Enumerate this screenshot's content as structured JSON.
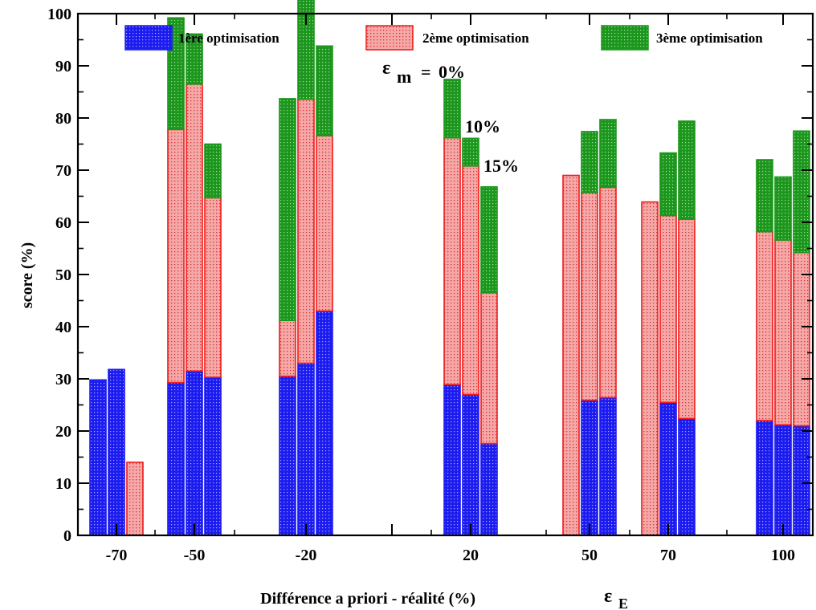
{
  "chart_data": {
    "type": "bar",
    "stacked": true,
    "title": "",
    "ylabel": "score (%)",
    "xlabel": "Différence a priori - réalité (%)",
    "xlabel_symbol": "ε",
    "xlabel_symbol_sub": "E",
    "ylim": [
      0,
      100
    ],
    "yticks": [
      0,
      10,
      20,
      30,
      40,
      50,
      60,
      70,
      80,
      90,
      100
    ],
    "grid": false,
    "legend_position": "top",
    "groups": [
      "-70",
      "-50",
      "-20",
      "20",
      "50",
      "70",
      "100"
    ],
    "epsilon_m_levels": [
      "0%",
      "10%",
      "15%"
    ],
    "annotations": {
      "symbol": "ε",
      "symbol_sub": "m",
      "equals": "=",
      "level_0": "0%",
      "level_1": "10%",
      "level_2": "15%"
    },
    "series": [
      {
        "name": "1ère optimisation",
        "color": "#1c1cf0",
        "values": [
          [
            29.8,
            31.8,
            0
          ],
          [
            29.3,
            31.5,
            30.3
          ],
          [
            30.5,
            33.0,
            43.0
          ],
          [
            28.9,
            27.0,
            17.6
          ],
          [
            0,
            25.9,
            26.4
          ],
          [
            0,
            25.5,
            22.4
          ],
          [
            22.0,
            21.2,
            21.0
          ]
        ]
      },
      {
        "name": "2ème optimisation",
        "color": "#f01c1c",
        "values": [
          [
            0,
            0,
            14.0
          ],
          [
            48.5,
            55.0,
            34.4
          ],
          [
            10.7,
            50.6,
            33.6
          ],
          [
            47.3,
            43.8,
            28.9
          ],
          [
            69.0,
            39.8,
            40.3
          ],
          [
            63.9,
            35.8,
            38.2
          ],
          [
            36.2,
            35.4,
            33.2
          ]
        ]
      },
      {
        "name": "3ème optimisation",
        "color": "#1c9a1c",
        "values": [
          [
            0,
            0,
            0
          ],
          [
            21.4,
            9.6,
            10.3
          ],
          [
            42.5,
            29.2,
            17.2
          ],
          [
            11.2,
            5.3,
            20.3
          ],
          [
            0,
            11.7,
            13.0
          ],
          [
            0,
            12.0,
            18.8
          ],
          [
            13.8,
            12.1,
            23.3
          ]
        ]
      }
    ]
  }
}
